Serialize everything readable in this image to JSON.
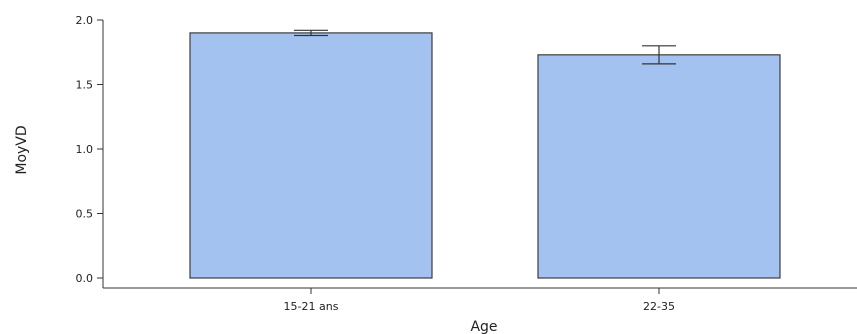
{
  "chart_data": {
    "type": "bar",
    "xlabel": "Age",
    "ylabel": "MoyVD",
    "categories": [
      "15-21 ans",
      "22-35"
    ],
    "values": [
      1.9,
      1.73
    ],
    "error_low": [
      1.88,
      1.66
    ],
    "error_high": [
      1.92,
      1.8
    ],
    "ylim": [
      0,
      2.0
    ],
    "yticks": [
      "0.0",
      "0.5",
      "1.0",
      "1.5",
      "2.0"
    ],
    "bar_color": "#a4c2f0",
    "grid": false,
    "legend": "none"
  }
}
